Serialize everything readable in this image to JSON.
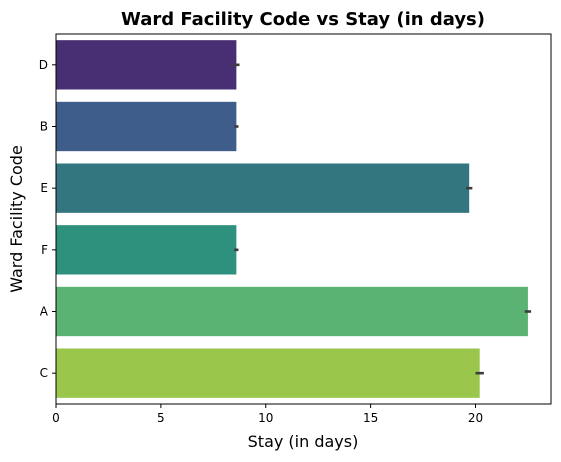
{
  "chart_data": {
    "type": "bar",
    "orientation": "horizontal",
    "title": "Ward Facility Code vs Stay (in days)",
    "xlabel": "Stay (in days)",
    "ylabel": "Ward Facility Code",
    "categories": [
      "D",
      "B",
      "E",
      "F",
      "A",
      "C"
    ],
    "values": [
      8.6,
      8.6,
      19.7,
      8.6,
      22.5,
      20.2
    ],
    "error_bars": [
      0.15,
      0.1,
      0.15,
      0.1,
      0.15,
      0.2
    ],
    "colors": [
      "#482f73",
      "#3f5d8a",
      "#33767f",
      "#2e917e",
      "#5ab273",
      "#9ac64c"
    ],
    "xlim": [
      0,
      23.6
    ],
    "xticks": [
      0,
      5,
      10,
      15,
      20
    ],
    "grid": false,
    "legend": "none"
  }
}
